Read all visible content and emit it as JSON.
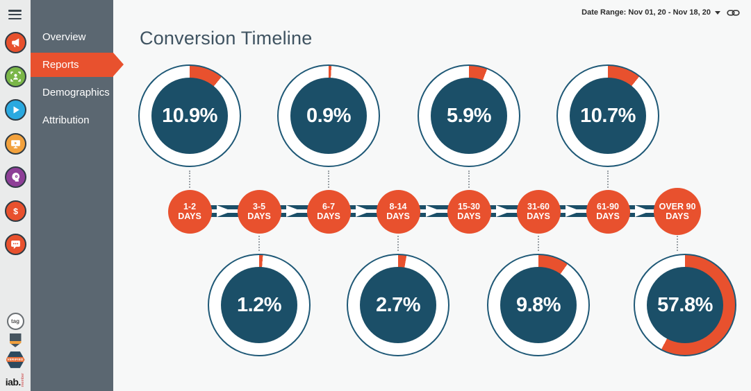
{
  "header": {
    "date_range": "Date Range: Nov 01, 20 - Nov 18, 20"
  },
  "main": {
    "title": "Conversion Timeline"
  },
  "nav": {
    "items": [
      {
        "label": "Overview",
        "active": false
      },
      {
        "label": "Reports",
        "active": true
      },
      {
        "label": "Demographics",
        "active": false
      },
      {
        "label": "Attribution",
        "active": false
      }
    ]
  },
  "icon_rail": {
    "icons": [
      {
        "name": "megaphone-icon",
        "color": "#e8512e"
      },
      {
        "name": "person-frame-icon",
        "color": "#7ab648"
      },
      {
        "name": "play-icon",
        "color": "#2aa9e0"
      },
      {
        "name": "monitor-play-icon",
        "color": "#f2a13d"
      },
      {
        "name": "head-gear-icon",
        "color": "#8e3f97"
      },
      {
        "name": "dollar-icon",
        "color": "#e8512e"
      },
      {
        "name": "chat-icon",
        "color": "#e8512e"
      }
    ],
    "badges": [
      {
        "name": "tag-badge",
        "label": "tag"
      },
      {
        "name": "compliance-shield-badge",
        "label": ""
      },
      {
        "name": "verified-badge",
        "label": "VERIFIED"
      },
      {
        "name": "iab-member-badge",
        "label": "iab.",
        "sublabel": "member"
      }
    ]
  },
  "chart_data": {
    "type": "timeline-donut",
    "title": "Conversion Timeline",
    "date_range": "Nov 01, 20 - Nov 18, 20",
    "unit": "percent of conversions per time-to-convert bucket",
    "stages": [
      {
        "range": "1-2",
        "unit": "DAYS",
        "value_pct": 10.9,
        "display": "10.9%",
        "donut_position": "top"
      },
      {
        "range": "3-5",
        "unit": "DAYS",
        "value_pct": 1.2,
        "display": "1.2%",
        "donut_position": "bottom"
      },
      {
        "range": "6-7",
        "unit": "DAYS",
        "value_pct": 0.9,
        "display": "0.9%",
        "donut_position": "top"
      },
      {
        "range": "8-14",
        "unit": "DAYS",
        "value_pct": 2.7,
        "display": "2.7%",
        "donut_position": "bottom"
      },
      {
        "range": "15-30",
        "unit": "DAYS",
        "value_pct": 5.9,
        "display": "5.9%",
        "donut_position": "top"
      },
      {
        "range": "31-60",
        "unit": "DAYS",
        "value_pct": 9.8,
        "display": "9.8%",
        "donut_position": "bottom"
      },
      {
        "range": "61-90",
        "unit": "DAYS",
        "value_pct": 10.7,
        "display": "10.7%",
        "donut_position": "top"
      },
      {
        "range": "OVER 90",
        "unit": "DAYS",
        "value_pct": 57.8,
        "display": "57.8%",
        "donut_position": "bottom"
      }
    ],
    "layout": {
      "arcs_start": "12 o'clock, clockwise",
      "timeline_direction": "left-to-right with arrows"
    },
    "colors": {
      "arc_orange": "#e8512e",
      "donut_fill": "#1b4f68",
      "ring_outline": "#1e5876",
      "connector": "#1b4f68"
    }
  }
}
